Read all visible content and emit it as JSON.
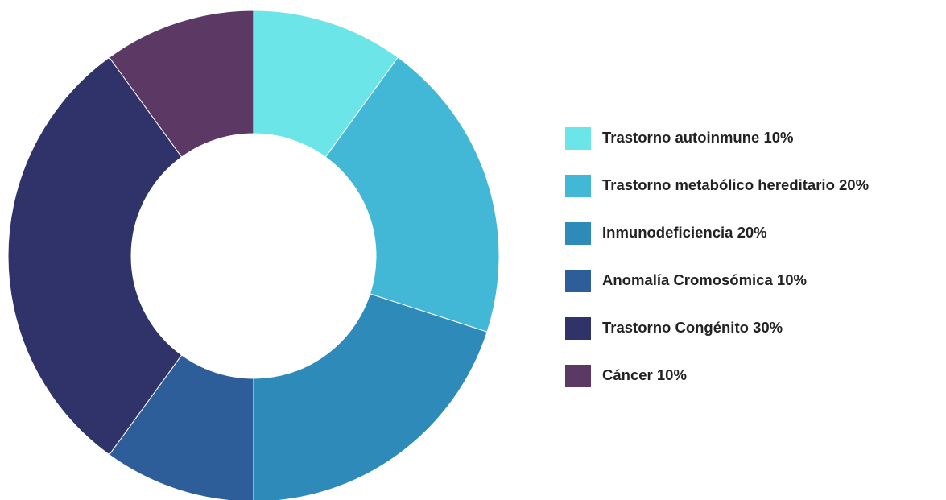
{
  "chart_data": {
    "type": "donut",
    "categories": [
      "Trastorno autoinmune",
      "Trastorno metabólico hereditario",
      "Inmunodeficiencia",
      "Anomalía Cromosómica",
      "Trastorno Congénito",
      "Cáncer"
    ],
    "values": [
      10,
      20,
      20,
      10,
      30,
      10
    ],
    "value_labels": [
      "10%",
      "20%",
      "20%",
      "10%",
      "30%",
      "10%"
    ],
    "colors": [
      "#6be5e8",
      "#43b8d6",
      "#2d8ab9",
      "#2e5e99",
      "#30326a",
      "#5c3864"
    ],
    "legend": "right"
  }
}
